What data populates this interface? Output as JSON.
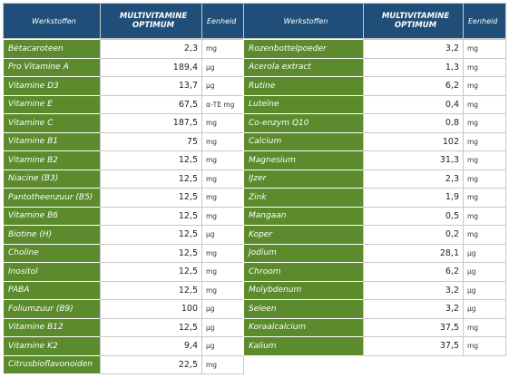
{
  "tables": [
    {
      "header": [
        "Werkstoffen",
        "MULTIVITAMINE OPTIMUM",
        "Eenheid"
      ],
      "rows": [
        [
          "Bètacaroteen",
          "2,3",
          "mg"
        ],
        [
          "Pro Vitamine A",
          "189,4",
          "µg"
        ],
        [
          "Vitamine D3",
          "13,7",
          "µg"
        ],
        [
          "Vitamine E",
          "67,5",
          "α-TE mg"
        ],
        [
          "Vitamine C",
          "187,5",
          "mg"
        ],
        [
          "Vitamine B1",
          "75",
          "mg"
        ],
        [
          "Vitamine B2",
          "12,5",
          "mg"
        ],
        [
          "Niacine (B3)",
          "12,5",
          "mg"
        ],
        [
          "Pantotheenzuur (B5)",
          "12,5",
          "mg"
        ],
        [
          "Vitamine B6",
          "12,5",
          "mg"
        ],
        [
          "Biotine (H)",
          "12,5",
          "µg"
        ],
        [
          "Choline",
          "12,5",
          "mg"
        ],
        [
          "Inositol",
          "12,5",
          "mg"
        ],
        [
          "PABA",
          "12,5",
          "mg"
        ],
        [
          "Foliumzuur (B9)",
          "100",
          "µg"
        ],
        [
          "Vitamine B12",
          "12,5",
          "µg"
        ],
        [
          "Vitamine K2",
          "9,4",
          "µg"
        ],
        [
          "Citrusbioflavonoiden",
          "22,5",
          "mg"
        ]
      ]
    },
    {
      "header": [
        "Werkstoffen",
        "MULTIVITAMINE OPTIMUM",
        "Eenheid"
      ],
      "rows": [
        [
          "Rozenbottelpoeder",
          "3,2",
          "mg"
        ],
        [
          "Acerola extract",
          "1,3",
          "mg"
        ],
        [
          "Rutine",
          "6,2",
          "mg"
        ],
        [
          "Luteïne",
          "0,4",
          "mg"
        ],
        [
          "Co-enzym Q10",
          "0,8",
          "mg"
        ],
        [
          "Calcium",
          "102",
          "mg"
        ],
        [
          "Magnesium",
          "31,3",
          "mg"
        ],
        [
          "IJzer",
          "2,3",
          "mg"
        ],
        [
          "Zink",
          "1,9",
          "mg"
        ],
        [
          "Mangaan",
          "0,5",
          "mg"
        ],
        [
          "Koper",
          "0,2",
          "mg"
        ],
        [
          "Jodium",
          "28,1",
          "µg"
        ],
        [
          "Chroom",
          "6,2",
          "µg"
        ],
        [
          "Molybdenum",
          "3,2",
          "µg"
        ],
        [
          "Seleen",
          "3,2",
          "µg"
        ],
        [
          "Koraalcalcium",
          "37,5",
          "mg"
        ],
        [
          "Kalium",
          "37,5",
          "mg"
        ]
      ]
    }
  ]
}
